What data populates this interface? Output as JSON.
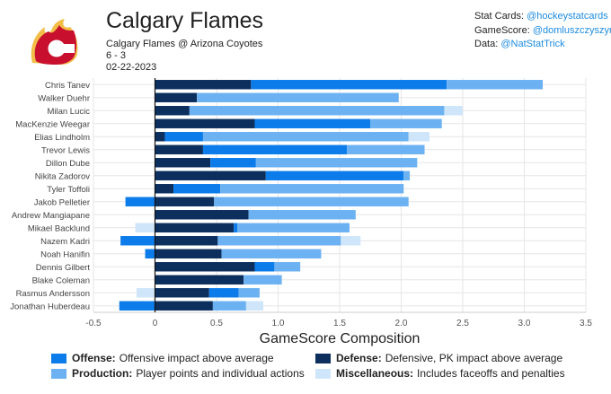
{
  "header": {
    "title": "Calgary Flames",
    "matchup": "Calgary Flames @ Arizona Coyotes",
    "score": "6 - 3",
    "date": "02-22-2023"
  },
  "credits": [
    {
      "label": "Stat Cards:",
      "handle": "@hockeystatcards"
    },
    {
      "label": "GameScore:",
      "handle": "@domluszczyszyn"
    },
    {
      "label": "Data:",
      "handle": "@NatStatTrick"
    }
  ],
  "colors": {
    "defense": "#0c2f5e",
    "offense": "#0c7cea",
    "production": "#6cb2f2",
    "misc": "#cfe5fa",
    "grid": "#e6e6e6",
    "logo_red": "#c8102e",
    "logo_gold": "#f1be48"
  },
  "chart_data": {
    "type": "bar",
    "orientation": "horizontal",
    "stacked": true,
    "xlabel": "GameScore Composition",
    "xlim": [
      -0.5,
      3.5
    ],
    "xticks": [
      "-0.5",
      "0",
      "0.5",
      "1.0",
      "1.5",
      "2.0",
      "2.5",
      "3.0",
      "3.5"
    ],
    "xtick_values": [
      -0.5,
      0,
      0.5,
      1.0,
      1.5,
      2.0,
      2.5,
      3.0,
      3.5
    ],
    "categories": [
      "Chris Tanev",
      "Walker Duehr",
      "Milan Lucic",
      "MacKenzie Weegar",
      "Elias Lindholm",
      "Trevor Lewis",
      "Dillon Dube",
      "Nikita Zadorov",
      "Tyler Toffoli",
      "Jakob Pelletier",
      "Andrew Mangiapane",
      "Mikael Backlund",
      "Nazem Kadri",
      "Noah Hanifin",
      "Dennis Gilbert",
      "Blake Coleman",
      "Rasmus Andersson",
      "Jonathan Huberdeau"
    ],
    "series": [
      {
        "name": "Defense",
        "key": "defense",
        "values": [
          0.78,
          0.34,
          0.28,
          0.81,
          0.08,
          0.39,
          0.45,
          0.9,
          0.15,
          0.48,
          0.76,
          0.64,
          0.51,
          0.54,
          0.81,
          0.72,
          0.44,
          0.47
        ]
      },
      {
        "name": "Offense",
        "key": "offense",
        "values": [
          1.59,
          0.0,
          0.0,
          0.94,
          0.31,
          1.17,
          0.37,
          1.12,
          0.38,
          -0.24,
          0.0,
          0.03,
          -0.28,
          -0.08,
          0.16,
          0.0,
          0.24,
          -0.29
        ]
      },
      {
        "name": "Production",
        "key": "production",
        "values": [
          0.78,
          1.64,
          2.07,
          0.58,
          1.67,
          0.63,
          1.31,
          0.05,
          1.49,
          1.58,
          0.87,
          0.91,
          1.0,
          0.81,
          0.21,
          0.31,
          0.17,
          0.27
        ]
      },
      {
        "name": "Miscellaneous",
        "key": "misc",
        "values": [
          0.0,
          0.0,
          0.15,
          0.0,
          0.17,
          0.0,
          0.0,
          0.0,
          0.0,
          0.0,
          0.0,
          -0.16,
          0.16,
          0.0,
          0.0,
          0.0,
          -0.15,
          0.14
        ]
      }
    ]
  },
  "legend": [
    {
      "key": "offense",
      "bold": "Offense:",
      "text": "Offensive impact above average"
    },
    {
      "key": "defense",
      "bold": "Defense:",
      "text": "Defensive, PK impact above average"
    },
    {
      "key": "production",
      "bold": "Production:",
      "text": "Player points and individual actions"
    },
    {
      "key": "misc",
      "bold": "Miscellaneous:",
      "text": "Includes faceoffs and penalties"
    }
  ]
}
